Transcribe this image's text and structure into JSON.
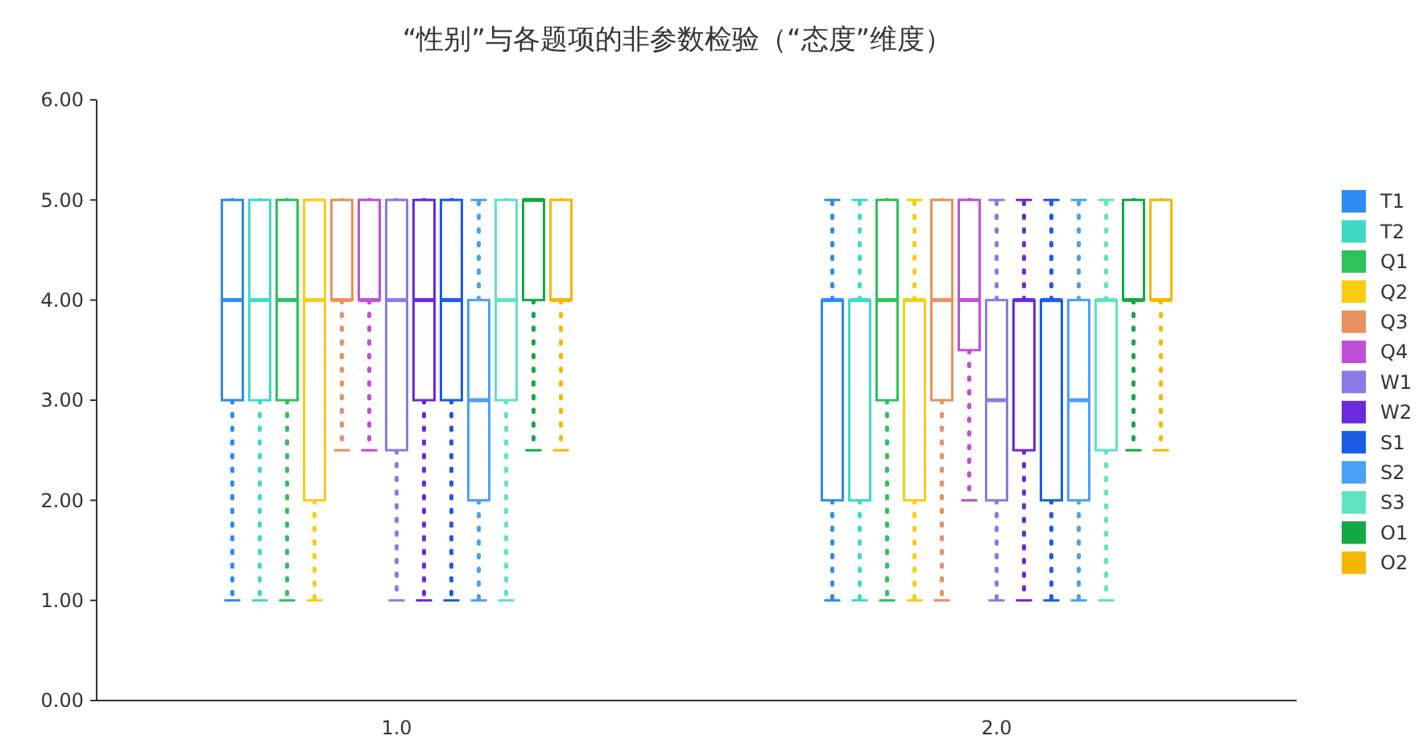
{
  "chart_data": {
    "type": "box",
    "title": "“性别”与各题项的非参数检验（“态度”维度）",
    "categories": [
      "1.0",
      "2.0"
    ],
    "ylim": [
      0,
      6
    ],
    "yticks": [
      {
        "value": 0,
        "label": "0.00"
      },
      {
        "value": 1,
        "label": "1.00"
      },
      {
        "value": 2,
        "label": "2.00"
      },
      {
        "value": 3,
        "label": "3.00"
      },
      {
        "value": 4,
        "label": "4.00"
      },
      {
        "value": 5,
        "label": "5.00"
      },
      {
        "value": 6,
        "label": "6.00"
      }
    ],
    "grid": false,
    "legend": "right",
    "line_style": "dotted",
    "series": [
      {
        "name": "T1",
        "color": "#2d8cf0",
        "boxes": [
          {
            "low": 1,
            "q1": 3,
            "median": 4,
            "q3": 5,
            "high": 5
          },
          {
            "low": 1,
            "q1": 2,
            "median": 4,
            "q3": 4,
            "high": 5
          }
        ]
      },
      {
        "name": "T2",
        "color": "#40d9c8",
        "boxes": [
          {
            "low": 1,
            "q1": 3,
            "median": 4,
            "q3": 5,
            "high": 5
          },
          {
            "low": 1,
            "q1": 2,
            "median": 4,
            "q3": 4,
            "high": 5
          }
        ]
      },
      {
        "name": "Q1",
        "color": "#2fc25b",
        "boxes": [
          {
            "low": 1,
            "q1": 3,
            "median": 4,
            "q3": 5,
            "high": 5
          },
          {
            "low": 1,
            "q1": 3,
            "median": 4,
            "q3": 5,
            "high": 5
          }
        ]
      },
      {
        "name": "Q2",
        "color": "#facc14",
        "boxes": [
          {
            "low": 1,
            "q1": 2,
            "median": 4,
            "q3": 5,
            "high": 5
          },
          {
            "low": 1,
            "q1": 2,
            "median": 4,
            "q3": 4,
            "high": 5
          }
        ]
      },
      {
        "name": "Q3",
        "color": "#e8925f",
        "boxes": [
          {
            "low": 2.5,
            "q1": 4,
            "median": 4,
            "q3": 5,
            "high": 5
          },
          {
            "low": 1,
            "q1": 3,
            "median": 4,
            "q3": 5,
            "high": 5
          }
        ]
      },
      {
        "name": "Q4",
        "color": "#c04fd6",
        "boxes": [
          {
            "low": 2.5,
            "q1": 4,
            "median": 4,
            "q3": 5,
            "high": 5
          },
          {
            "low": 2,
            "q1": 3.5,
            "median": 4,
            "q3": 5,
            "high": 5
          }
        ]
      },
      {
        "name": "W1",
        "color": "#8c7ae6",
        "boxes": [
          {
            "low": 1,
            "q1": 2.5,
            "median": 4,
            "q3": 5,
            "high": 5
          },
          {
            "low": 1,
            "q1": 2,
            "median": 3,
            "q3": 4,
            "high": 5
          }
        ]
      },
      {
        "name": "W2",
        "color": "#6a29e0",
        "boxes": [
          {
            "low": 1,
            "q1": 3,
            "median": 4,
            "q3": 5,
            "high": 5
          },
          {
            "low": 1,
            "q1": 2.5,
            "median": 4,
            "q3": 4,
            "high": 5
          }
        ]
      },
      {
        "name": "S1",
        "color": "#1a5ce6",
        "boxes": [
          {
            "low": 1,
            "q1": 3,
            "median": 4,
            "q3": 5,
            "high": 5
          },
          {
            "low": 1,
            "q1": 2,
            "median": 4,
            "q3": 4,
            "high": 5
          }
        ]
      },
      {
        "name": "S2",
        "color": "#4aa0f5",
        "boxes": [
          {
            "low": 1,
            "q1": 2,
            "median": 3,
            "q3": 4,
            "high": 5
          },
          {
            "low": 1,
            "q1": 2,
            "median": 3,
            "q3": 4,
            "high": 5
          }
        ]
      },
      {
        "name": "S3",
        "color": "#5fe3c0",
        "boxes": [
          {
            "low": 1,
            "q1": 3,
            "median": 4,
            "q3": 5,
            "high": 5
          },
          {
            "low": 1,
            "q1": 2.5,
            "median": 4,
            "q3": 4,
            "high": 5
          }
        ]
      },
      {
        "name": "O1",
        "color": "#14a844",
        "boxes": [
          {
            "low": 2.5,
            "q1": 4,
            "median": 5,
            "q3": 5,
            "high": 5
          },
          {
            "low": 2.5,
            "q1": 4,
            "median": 4,
            "q3": 5,
            "high": 5
          }
        ]
      },
      {
        "name": "O2",
        "color": "#f5b800",
        "boxes": [
          {
            "low": 2.5,
            "q1": 4,
            "median": 4,
            "q3": 5,
            "high": 5
          },
          {
            "low": 2.5,
            "q1": 4,
            "median": 4,
            "q3": 5,
            "high": 5
          }
        ]
      }
    ]
  }
}
